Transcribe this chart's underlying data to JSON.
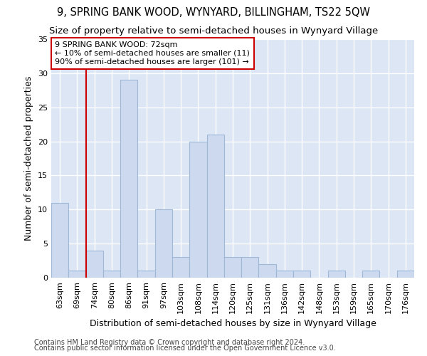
{
  "title": "9, SPRING BANK WOOD, WYNYARD, BILLINGHAM, TS22 5QW",
  "subtitle": "Size of property relative to semi-detached houses in Wynyard Village",
  "xlabel": "Distribution of semi-detached houses by size in Wynyard Village",
  "ylabel": "Number of semi-detached properties",
  "categories": [
    "63sqm",
    "69sqm",
    "74sqm",
    "80sqm",
    "86sqm",
    "91sqm",
    "97sqm",
    "103sqm",
    "108sqm",
    "114sqm",
    "120sqm",
    "125sqm",
    "131sqm",
    "136sqm",
    "142sqm",
    "148sqm",
    "153sqm",
    "159sqm",
    "165sqm",
    "170sqm",
    "176sqm"
  ],
  "values": [
    11,
    1,
    4,
    1,
    29,
    1,
    10,
    3,
    20,
    21,
    3,
    3,
    2,
    1,
    1,
    0,
    1,
    0,
    1,
    0,
    1
  ],
  "bar_color": "#ccd9ee",
  "bar_edge_color": "#a0b8d8",
  "annotation_title": "9 SPRING BANK WOOD: 72sqm",
  "annotation_line1": "← 10% of semi-detached houses are smaller (11)",
  "annotation_line2": "90% of semi-detached houses are larger (101) →",
  "vline_color": "#cc0000",
  "vline_position": 1.5,
  "annotation_box_edgecolor": "#cc0000",
  "ylim": [
    0,
    35
  ],
  "yticks": [
    0,
    5,
    10,
    15,
    20,
    25,
    30,
    35
  ],
  "fig_background": "#ffffff",
  "plot_background": "#dce6f5",
  "grid_color": "#ffffff",
  "title_fontsize": 10.5,
  "subtitle_fontsize": 9.5,
  "axis_label_fontsize": 9,
  "tick_fontsize": 8,
  "annotation_fontsize": 8,
  "footer_fontsize": 7,
  "footer1": "Contains HM Land Registry data © Crown copyright and database right 2024.",
  "footer2": "Contains public sector information licensed under the Open Government Licence v3.0."
}
